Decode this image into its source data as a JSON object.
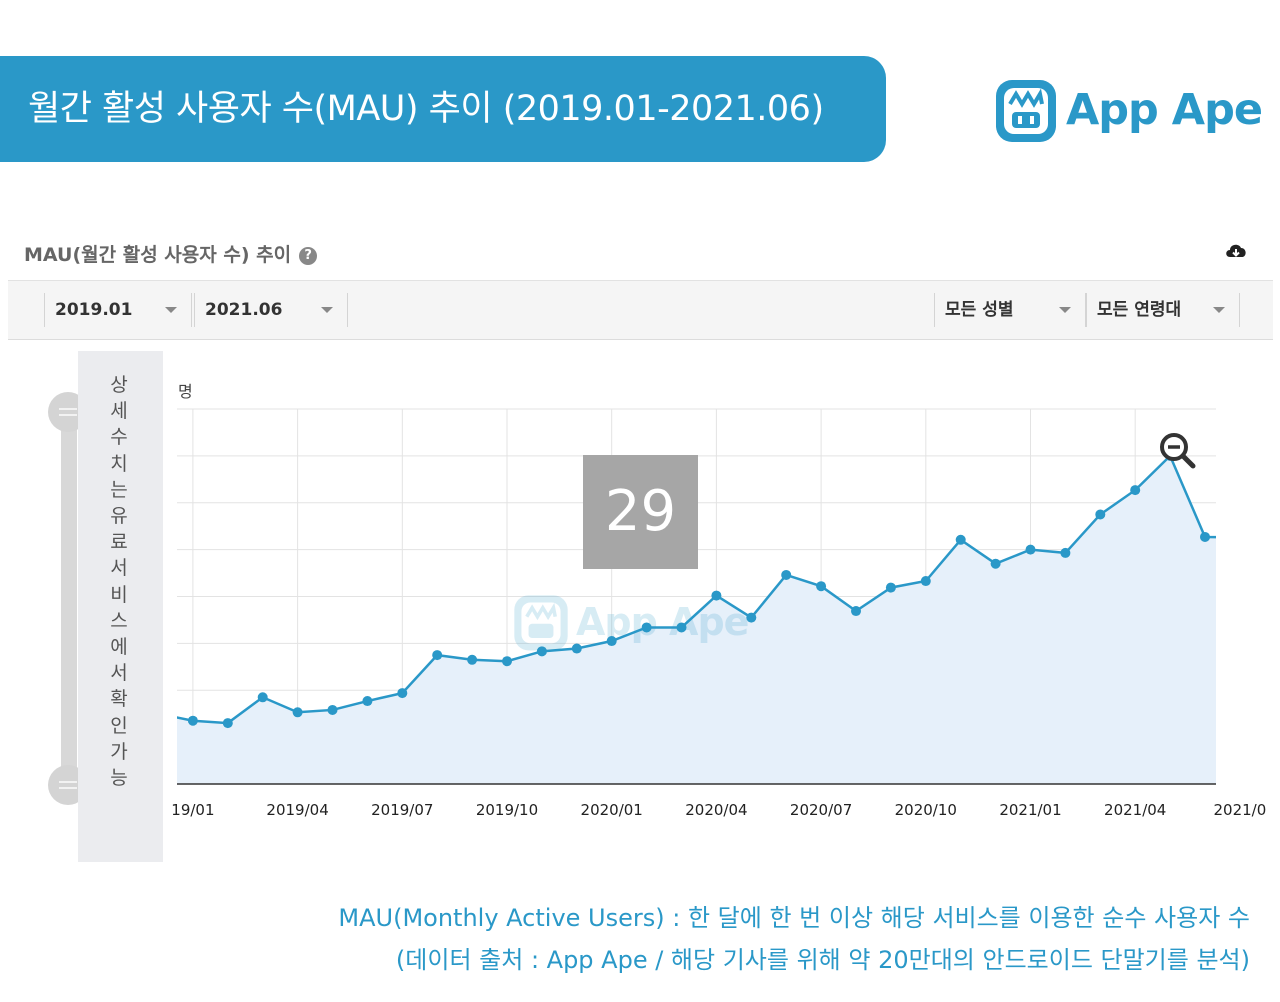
{
  "banner": {
    "title": "월간 활성 사용자 수(MAU) 추이 (2019.01-2021.06)"
  },
  "logo": {
    "text": "App Ape",
    "icon": "ape-face-icon"
  },
  "panel": {
    "title": "MAU(월간 활성 사용자 수) 추이",
    "help_icon": "?",
    "download_icon": "cloud-download-icon"
  },
  "filters": {
    "start": "2019.01",
    "end": "2021.06",
    "gender": "모든 성별",
    "age": "모든 연령대"
  },
  "side_note": "상세수치는 유료서비스에서 확인가능",
  "unit_label": "명",
  "tooltip_value": "29",
  "watermark": "App Ape",
  "colors": {
    "accent": "#2a98c8",
    "line": "#2a98c8",
    "area": "#e6f0fa"
  },
  "chart_data": {
    "type": "area",
    "ylabel": "명",
    "x": [
      "2018/12",
      "2019/01",
      "2019/02",
      "2019/03",
      "2019/04",
      "2019/05",
      "2019/06",
      "2019/07",
      "2019/08",
      "2019/09",
      "2019/10",
      "2019/11",
      "2019/12",
      "2020/01",
      "2020/02",
      "2020/03",
      "2020/04",
      "2020/05",
      "2020/06",
      "2020/07",
      "2020/08",
      "2020/09",
      "2020/10",
      "2020/11",
      "2020/12",
      "2021/01",
      "2021/02",
      "2021/03",
      "2021/04",
      "2021/05",
      "2021/06",
      "2021/07"
    ],
    "values": [
      1.5,
      1.35,
      1.3,
      1.85,
      1.53,
      1.58,
      1.77,
      1.94,
      2.75,
      2.65,
      2.62,
      2.83,
      2.89,
      3.05,
      3.34,
      3.34,
      4.02,
      3.55,
      4.46,
      4.22,
      3.69,
      4.19,
      4.33,
      5.21,
      4.7,
      5.0,
      4.93,
      5.75,
      6.27,
      7.0,
      5.27,
      5.26
    ],
    "xtick_labels": [
      "19/01",
      "2019/04",
      "2019/07",
      "2019/10",
      "2020/01",
      "2020/04",
      "2020/07",
      "2020/10",
      "2021/01",
      "2021/04",
      "2021/0"
    ],
    "ylim": [
      0,
      8
    ],
    "grid": true,
    "legend": "none"
  },
  "footnotes": {
    "line1": "MAU(Monthly Active Users) : 한 달에 한 번 이상 해당 서비스를 이용한 순수 사용자 수",
    "line2": "(데이터 출처 : App Ape / 해당 기사를 위해 약 20만대의 안드로이드 단말기를 분석)"
  }
}
